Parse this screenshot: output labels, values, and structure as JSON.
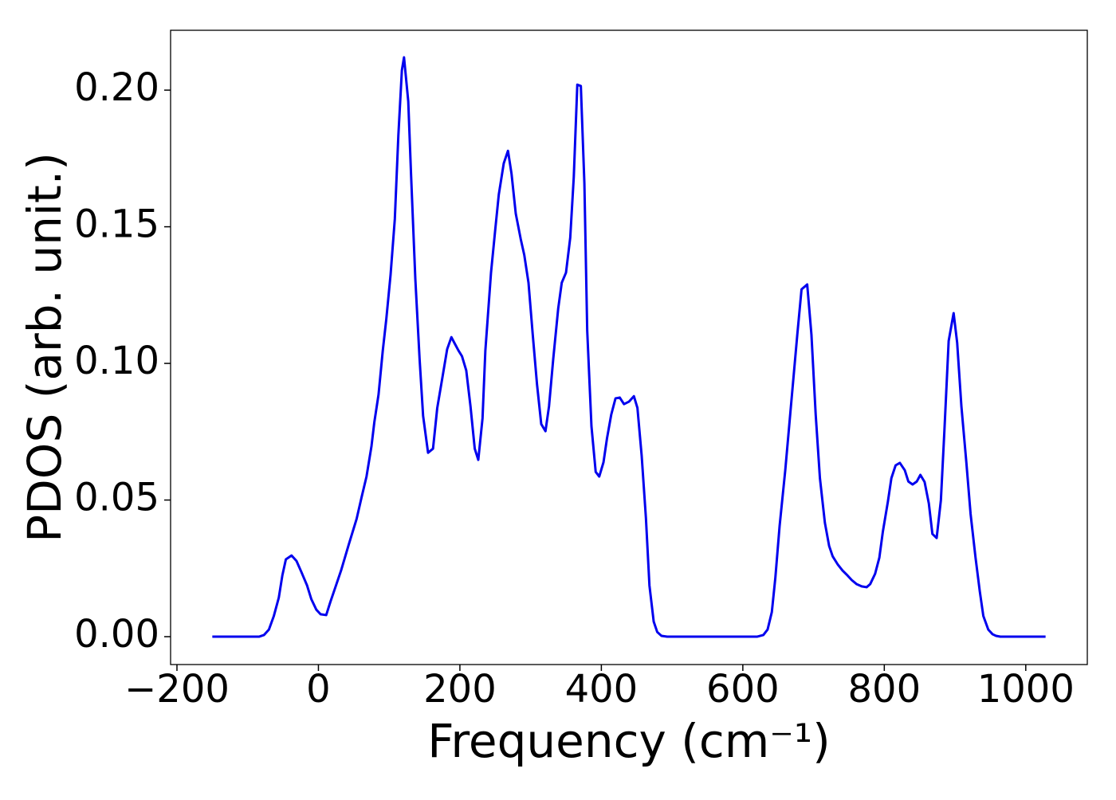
{
  "chart_data": {
    "type": "line",
    "xlabel": "Frequency (cm⁻¹)",
    "ylabel": "PDOS (arb. unit.)",
    "xlim": [
      -209,
      1087
    ],
    "ylim": [
      -0.0102,
      0.2219
    ],
    "xticks": [
      {
        "value": -200,
        "label": "−200"
      },
      0,
      200,
      400,
      600,
      800,
      1000
    ],
    "yticks": [
      {
        "value": 0,
        "label": "0.00"
      },
      {
        "value": 0.05,
        "label": "0.05"
      },
      {
        "value": 0.1,
        "label": "0.10"
      },
      {
        "value": 0.15,
        "label": "0.15"
      },
      {
        "value": 0.2,
        "label": "0.20"
      }
    ],
    "grid": false,
    "series": [
      {
        "color": "#0000ee",
        "x": [
          -150,
          -84,
          -77,
          -70,
          -63,
          -56,
          -51,
          -46,
          -38,
          -31,
          -24,
          -16,
          -10,
          -3,
          3,
          11,
          17,
          24,
          32,
          43,
          54,
          61,
          68,
          75,
          79,
          85,
          91,
          96,
          102,
          108,
          113,
          118,
          121,
          127,
          131,
          137,
          143,
          148,
          155,
          162,
          168,
          175,
          182,
          188,
          192,
          198,
          203,
          209,
          215,
          221,
          226,
          232,
          236,
          244,
          250,
          255,
          262,
          268,
          273,
          279,
          286,
          291,
          297,
          303,
          309,
          315,
          321,
          326,
          332,
          339,
          344,
          350,
          356,
          361,
          366,
          371,
          376,
          380,
          386,
          392,
          397,
          403,
          408,
          414,
          420,
          426,
          432,
          439,
          446,
          451,
          457,
          463,
          468,
          474,
          479,
          485,
          493,
          620,
          629,
          635,
          641,
          646,
          652,
          660,
          668,
          677,
          683,
          691,
          697,
          703,
          709,
          716,
          722,
          727,
          734,
          741,
          748,
          754,
          761,
          768,
          775,
          780,
          787,
          793,
          798,
          805,
          810,
          816,
          822,
          829,
          834,
          840,
          846,
          851,
          857,
          863,
          868,
          874,
          880,
          885,
          891,
          898,
          903,
          909,
          916,
          922,
          929,
          935,
          940,
          947,
          953,
          958,
          964,
          1028
        ],
        "values": [
          0,
          0,
          0.0006,
          0.0026,
          0.0076,
          0.0143,
          0.0224,
          0.0283,
          0.0297,
          0.0277,
          0.0236,
          0.0187,
          0.0137,
          0.0099,
          0.0082,
          0.0079,
          0.0128,
          0.0181,
          0.0242,
          0.0338,
          0.0431,
          0.051,
          0.0586,
          0.0697,
          0.0784,
          0.0886,
          0.1047,
          0.1163,
          0.1324,
          0.1528,
          0.1834,
          0.2073,
          0.212,
          0.1959,
          0.1688,
          0.1309,
          0.1017,
          0.0808,
          0.0673,
          0.0688,
          0.0837,
          0.0944,
          0.1052,
          0.1096,
          0.1076,
          0.1047,
          0.1026,
          0.0974,
          0.0843,
          0.0688,
          0.0647,
          0.0799,
          0.1047,
          0.1332,
          0.149,
          0.1618,
          0.1732,
          0.1778,
          0.1694,
          0.1548,
          0.1455,
          0.1397,
          0.1295,
          0.1105,
          0.0924,
          0.0778,
          0.0752,
          0.0843,
          0.1017,
          0.1201,
          0.1295,
          0.1332,
          0.146,
          0.1682,
          0.202,
          0.2015,
          0.1659,
          0.112,
          0.077,
          0.0603,
          0.0586,
          0.0638,
          0.0726,
          0.0813,
          0.0872,
          0.0875,
          0.0851,
          0.086,
          0.088,
          0.0837,
          0.0662,
          0.0434,
          0.0187,
          0.0055,
          0.0017,
          0.0003,
          0,
          0,
          0.0006,
          0.0026,
          0.009,
          0.0216,
          0.0405,
          0.0609,
          0.0843,
          0.1105,
          0.1271,
          0.1289,
          0.1105,
          0.0813,
          0.058,
          0.0417,
          0.0332,
          0.0294,
          0.0265,
          0.0242,
          0.0224,
          0.0207,
          0.0192,
          0.0184,
          0.0181,
          0.0192,
          0.023,
          0.0289,
          0.0385,
          0.0493,
          0.058,
          0.0627,
          0.0636,
          0.0609,
          0.0568,
          0.0557,
          0.0568,
          0.0592,
          0.0566,
          0.0487,
          0.0376,
          0.0361,
          0.0499,
          0.0755,
          0.1082,
          0.1184,
          0.1076,
          0.0843,
          0.0638,
          0.0449,
          0.0289,
          0.0166,
          0.0076,
          0.0026,
          0.0009,
          0.0003,
          0,
          0
        ]
      }
    ]
  }
}
